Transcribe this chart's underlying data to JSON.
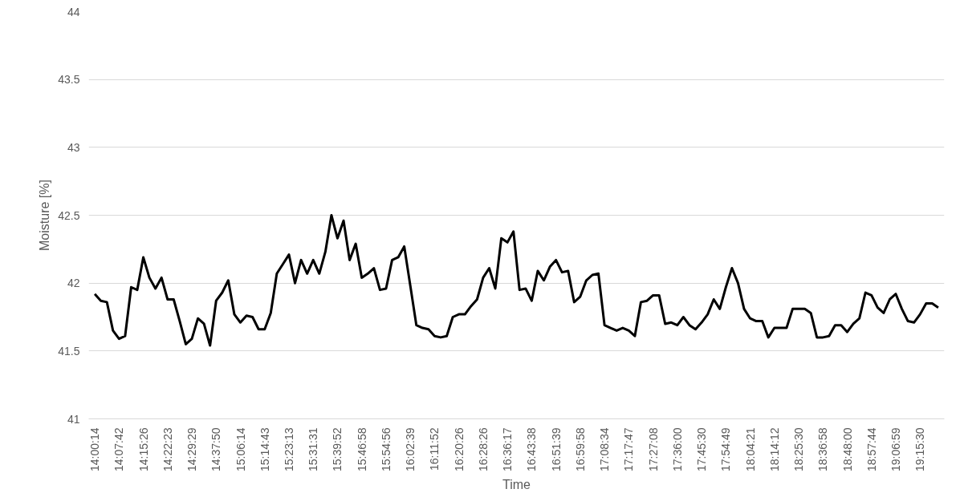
{
  "chart_data": {
    "type": "line",
    "xlabel": "Time",
    "ylabel": "Moisture [%]",
    "categories": [
      "14:00:14",
      null,
      null,
      null,
      "14:07:42",
      null,
      null,
      null,
      "14:15:26",
      null,
      null,
      null,
      "14:22:23",
      null,
      null,
      null,
      "14:29:29",
      null,
      null,
      null,
      "14:37:50",
      null,
      null,
      null,
      "15:06:14",
      null,
      null,
      null,
      "15:14:43",
      null,
      null,
      null,
      "15:23:13",
      null,
      null,
      null,
      "15:31:31",
      null,
      null,
      null,
      "15:39:52",
      null,
      null,
      null,
      "15:46:58",
      null,
      null,
      null,
      "15:54:56",
      null,
      null,
      null,
      "16:02:39",
      null,
      null,
      null,
      "16:11:52",
      null,
      null,
      null,
      "16:20:26",
      null,
      null,
      null,
      "16:28:26",
      null,
      null,
      null,
      "16:36:17",
      null,
      null,
      null,
      "16:43:38",
      null,
      null,
      null,
      "16:51:39",
      null,
      null,
      null,
      "16:59:58",
      null,
      null,
      null,
      "17:08:34",
      null,
      null,
      null,
      "17:17:47",
      null,
      null,
      null,
      "17:27:08",
      null,
      null,
      null,
      "17:36:00",
      null,
      null,
      null,
      "17:45:30",
      null,
      null,
      null,
      "17:54:49",
      null,
      null,
      null,
      "18:04:21",
      null,
      null,
      null,
      "18:14:12",
      null,
      null,
      null,
      "18:25:30",
      null,
      null,
      null,
      "18:36:58",
      null,
      null,
      null,
      "18:48:00",
      null,
      null,
      null,
      "18:57:44",
      null,
      null,
      null,
      "19:06:59",
      null,
      null,
      null,
      "19:15:30",
      null,
      null,
      null
    ],
    "series": [
      {
        "color": "#000000",
        "values": [
          41.92,
          41.87,
          41.86,
          41.65,
          41.59,
          41.61,
          41.97,
          41.95,
          42.19,
          42.04,
          41.96,
          42.04,
          41.88,
          41.88,
          41.72,
          41.55,
          41.59,
          41.74,
          41.7,
          41.54,
          41.87,
          41.93,
          42.02,
          41.77,
          41.71,
          41.76,
          41.75,
          41.66,
          41.66,
          41.78,
          42.07,
          42.14,
          42.21,
          42.0,
          42.17,
          42.07,
          42.17,
          42.07,
          42.23,
          42.5,
          42.33,
          42.46,
          42.17,
          42.29,
          42.04,
          42.07,
          42.11,
          41.95,
          41.96,
          42.17,
          42.19,
          42.27,
          41.98,
          41.69,
          41.67,
          41.66,
          41.61,
          41.6,
          41.61,
          41.75,
          41.77,
          41.77,
          41.83,
          41.88,
          42.04,
          42.11,
          41.96,
          42.33,
          42.3,
          42.38,
          41.95,
          41.96,
          41.87,
          42.09,
          42.02,
          42.12,
          42.17,
          42.08,
          42.09,
          41.86,
          41.9,
          42.02,
          42.06,
          42.07,
          41.69,
          41.67,
          41.65,
          41.67,
          41.65,
          41.61,
          41.86,
          41.87,
          41.91,
          41.91,
          41.7,
          41.71,
          41.69,
          41.75,
          41.69,
          41.66,
          41.71,
          41.77,
          41.88,
          41.81,
          41.97,
          42.11,
          42.0,
          41.81,
          41.74,
          41.72,
          41.72,
          41.6,
          41.67,
          41.67,
          41.67,
          41.81,
          41.81,
          41.81,
          41.78,
          41.6,
          41.6,
          41.61,
          41.69,
          41.69,
          41.64,
          41.7,
          41.74,
          41.93,
          41.91,
          41.82,
          41.78,
          41.88,
          41.92,
          41.81,
          41.72,
          41.71,
          41.77,
          41.85,
          41.85,
          41.82
        ]
      }
    ],
    "ylim": [
      41,
      44
    ],
    "yticks": [
      41,
      41.5,
      42,
      42.5,
      43,
      43.5,
      44
    ],
    "grid": "y",
    "marker": "none",
    "line_style": "solid"
  }
}
